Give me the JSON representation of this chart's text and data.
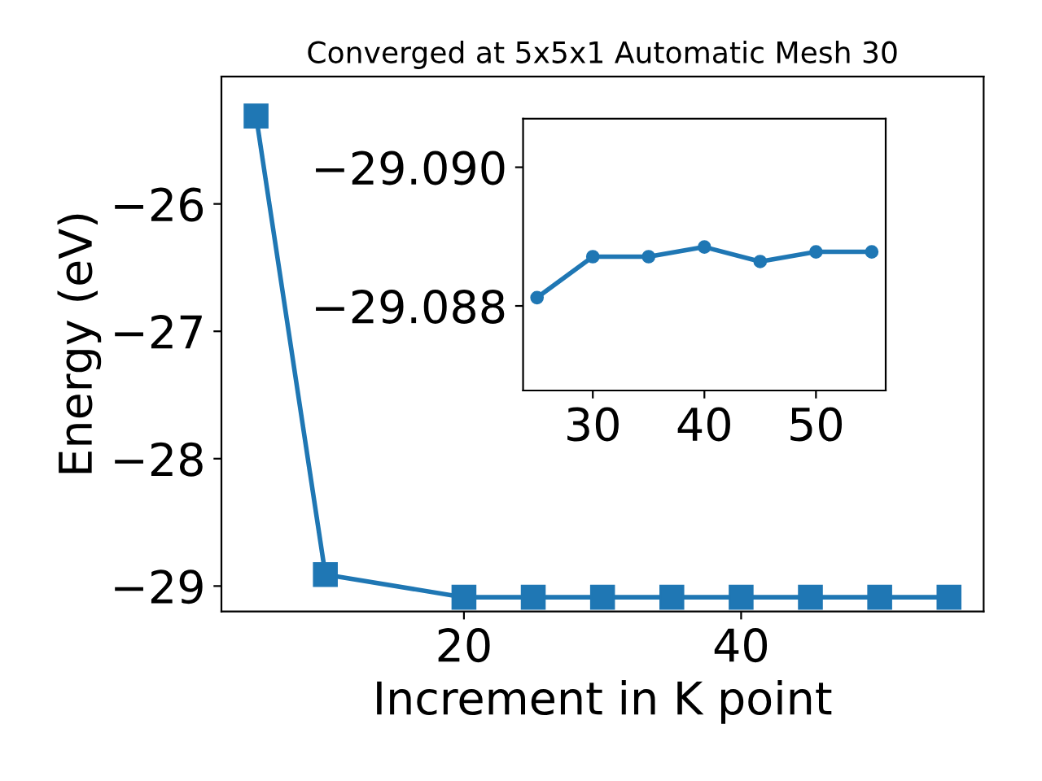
{
  "chart_data": [
    {
      "type": "line",
      "title": "Converged at 5x5x1 Automatic Mesh 30",
      "xlabel": "Increment in K point",
      "ylabel": "Energy (eV)",
      "marker": "square",
      "line_style": "solid",
      "grid": false,
      "x": [
        5,
        10,
        20,
        25,
        30,
        35,
        40,
        45,
        50,
        55
      ],
      "series": [
        {
          "color": "#1f77b4",
          "values": [
            -25.31,
            -28.91,
            -29.088,
            -29.088,
            -29.088,
            -29.088,
            -29.088,
            -29.088,
            -29.088,
            -29.088
          ]
        }
      ],
      "xlim": [
        2.5,
        57.5
      ],
      "ylim": [
        -29.2,
        -25.0
      ],
      "xticks": [
        20,
        40
      ],
      "yticks": [
        {
          "value": -26,
          "label": "−26"
        },
        {
          "value": -27,
          "label": "−27"
        },
        {
          "value": -28,
          "label": "−28"
        },
        {
          "value": -29,
          "label": "−29"
        }
      ]
    },
    {
      "type": "line",
      "marker": "circle",
      "line_style": "solid",
      "grid": false,
      "x": [
        25,
        30,
        35,
        40,
        45,
        50,
        55
      ],
      "series": [
        {
          "color": "#1f77b4",
          "values": [
            -29.08812,
            -29.08871,
            -29.08871,
            -29.08885,
            -29.08864,
            -29.08878,
            -29.08878
          ]
        }
      ],
      "xlim": [
        23.75,
        56.25
      ],
      "ylim": [
        -29.08678,
        -29.0907
      ],
      "xticks": [
        30,
        40,
        50
      ],
      "yticks": [
        {
          "value": -29.09,
          "label": "−29.090"
        },
        {
          "value": -29.088,
          "label": "−29.088"
        }
      ]
    }
  ]
}
